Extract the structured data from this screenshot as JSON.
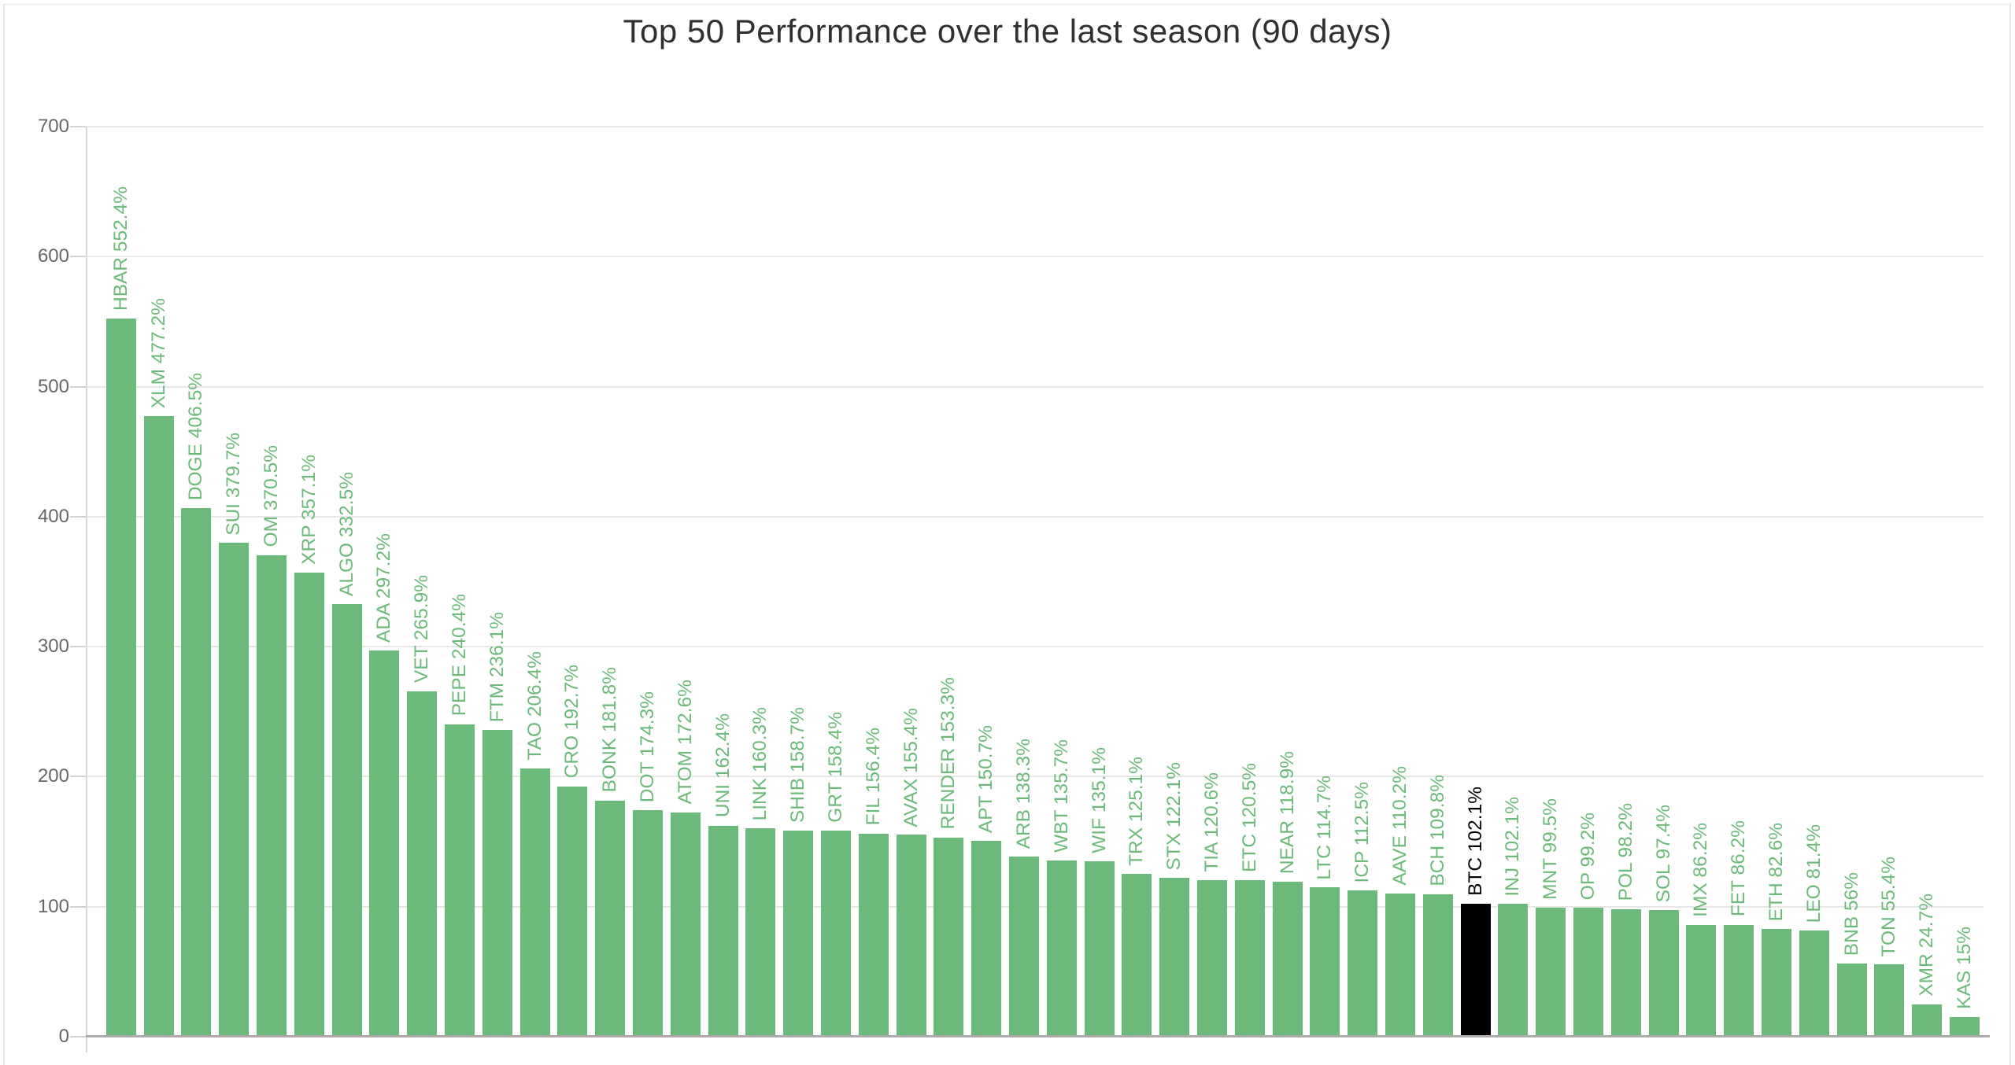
{
  "chart_data": {
    "type": "bar",
    "title": "Top 50 Performance over the last season (90 days)",
    "categories": [
      "HBAR",
      "XLM",
      "DOGE",
      "SUI",
      "OM",
      "XRP",
      "ALGO",
      "ADA",
      "VET",
      "PEPE",
      "FTM",
      "TAO",
      "CRO",
      "BONK",
      "DOT",
      "ATOM",
      "UNI",
      "LINK",
      "SHIB",
      "GRT",
      "FIL",
      "AVAX",
      "RENDER",
      "APT",
      "ARB",
      "WBT",
      "WIF",
      "TRX",
      "STX",
      "TIA",
      "ETC",
      "NEAR",
      "LTC",
      "ICP",
      "AAVE",
      "BCH",
      "BTC",
      "INJ",
      "MNT",
      "OP",
      "POL",
      "SOL",
      "IMX",
      "FET",
      "ETH",
      "LEO",
      "BNB",
      "TON",
      "XMR",
      "KAS"
    ],
    "values": [
      552.4,
      477.2,
      406.5,
      379.7,
      370.5,
      357.1,
      332.5,
      297.2,
      265.9,
      240.4,
      236.1,
      206.4,
      192.7,
      181.8,
      174.3,
      172.6,
      162.4,
      160.3,
      158.7,
      158.4,
      156.4,
      155.4,
      153.3,
      150.7,
      138.3,
      135.7,
      135.1,
      125.1,
      122.1,
      120.6,
      120.5,
      118.9,
      114.7,
      112.5,
      110.2,
      109.8,
      102.1,
      102.1,
      99.5,
      99.2,
      98.2,
      97.4,
      86.2,
      86.2,
      82.6,
      81.4,
      56,
      55.4,
      24.7,
      15
    ],
    "bar_labels": [
      "HBAR 552.4%",
      "XLM 477.2%",
      "DOGE 406.5%",
      "SUI 379.7%",
      "OM 370.5%",
      "XRP 357.1%",
      "ALGO 332.5%",
      "ADA 297.2%",
      "VET 265.9%",
      "PEPE 240.4%",
      "FTM 236.1%",
      "TAO 206.4%",
      "CRO 192.7%",
      "BONK 181.8%",
      "DOT 174.3%",
      "ATOM 172.6%",
      "UNI 162.4%",
      "LINK 160.3%",
      "SHIB 158.7%",
      "GRT 158.4%",
      "FIL 156.4%",
      "AVAX 155.4%",
      "RENDER 153.3%",
      "APT 150.7%",
      "ARB 138.3%",
      "WBT 135.7%",
      "WIF 135.1%",
      "TRX 125.1%",
      "STX 122.1%",
      "TIA 120.6%",
      "ETC 120.5%",
      "NEAR 118.9%",
      "LTC 114.7%",
      "ICP 112.5%",
      "AAVE 110.2%",
      "BCH 109.8%",
      "BTC 102.1%",
      "INJ 102.1%",
      "MNT 99.5%",
      "OP 99.2%",
      "POL 98.2%",
      "SOL 97.4%",
      "IMX 86.2%",
      "FET 86.2%",
      "ETH 82.6%",
      "LEO 81.4%",
      "BNB 56%",
      "TON 55.4%",
      "XMR 24.7%",
      "KAS 15%"
    ],
    "highlight": {
      "category": "BTC",
      "index": 36,
      "bar_color": "#000000",
      "label_color": "#000000"
    },
    "bar_color": "#6cba7a",
    "label_color": "#6cba7a",
    "yaxis": {
      "min": 0,
      "max": 700,
      "ticks": [
        0,
        100,
        200,
        300,
        400,
        500,
        600,
        700
      ]
    },
    "grid": true,
    "legend": false,
    "title_color": "#303030",
    "axis_label_color": "#666666",
    "grid_color": "#e7e7e7",
    "axis_line_color": "#d6d6d6",
    "baseline_color": "#ababab"
  }
}
